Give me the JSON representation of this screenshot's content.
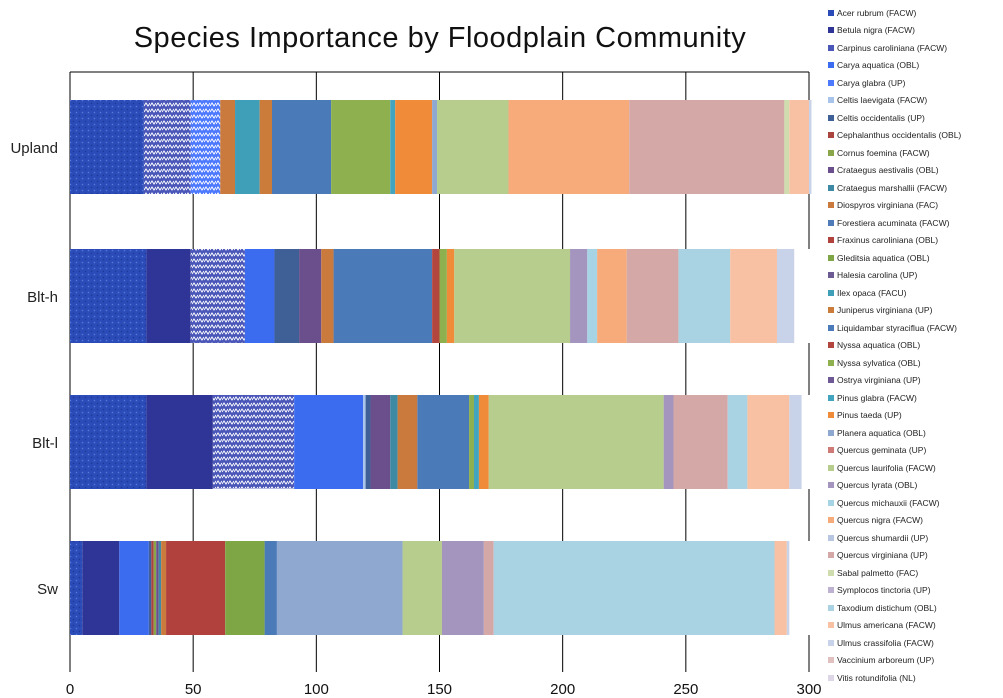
{
  "chart_data": {
    "type": "bar",
    "orientation": "horizontal",
    "stacked": true,
    "title": "Species Importance by Floodplain Community",
    "xlim": [
      0,
      300
    ],
    "xticks": [
      "0",
      "50",
      "100",
      "150",
      "200",
      "250",
      "300"
    ],
    "grid": "vertical",
    "legend_position": "right",
    "categories": [
      "Upland",
      "Blt-h",
      "Blt-l",
      "Sw"
    ],
    "series": [
      {
        "name": "Acer rubrum (FACW)",
        "color": "#2b4cb8",
        "pattern": "dots",
        "values": [
          30,
          31,
          31,
          5
        ]
      },
      {
        "name": "Betula nigra (FACW)",
        "color": "#2f3596",
        "values": [
          0,
          18,
          27,
          15
        ]
      },
      {
        "name": "Carpinus caroliniana (FACW)",
        "color": "#4a57b8",
        "pattern": "zigzag",
        "values": [
          19,
          22,
          33,
          0
        ]
      },
      {
        "name": "Carya aquatica (OBL)",
        "color": "#3b6cf0",
        "values": [
          0,
          12,
          28,
          12
        ]
      },
      {
        "name": "Carya glabra (UP)",
        "color": "#4d79ff",
        "pattern": "zigzag",
        "values": [
          12,
          0,
          0,
          0
        ]
      },
      {
        "name": "Celtis laevigata (FACW)",
        "color": "#a9c4ea",
        "values": [
          0,
          0,
          1,
          0
        ]
      },
      {
        "name": "Celtis occidentalis (UP)",
        "color": "#3f6096",
        "values": [
          0,
          10,
          2,
          1
        ]
      },
      {
        "name": "Cephalanthus occidentalis (OBL)",
        "color": "#a9443f",
        "values": [
          0,
          0,
          0,
          1
        ]
      },
      {
        "name": "Cornus foemina (FACW)",
        "color": "#8aa64b",
        "values": [
          0,
          0,
          0,
          1
        ]
      },
      {
        "name": "Crataegus aestivalis (OBL)",
        "color": "#6a4f8c",
        "values": [
          0,
          9,
          8,
          1
        ]
      },
      {
        "name": "Crataegus marshallii (FACW)",
        "color": "#3e8aa4",
        "values": [
          0,
          0,
          3,
          1
        ]
      },
      {
        "name": "Diospyros virginiana (FAC)",
        "color": "#c97a3c",
        "values": [
          6,
          5,
          8,
          2
        ]
      },
      {
        "name": "Forestiera acuminata (FACW)",
        "color": "#4f7bb8",
        "values": [
          0,
          0,
          0,
          0
        ]
      },
      {
        "name": "Fraxinus caroliniana (OBL)",
        "color": "#b0413d",
        "values": [
          0,
          0,
          0,
          24
        ]
      },
      {
        "name": "Gleditsia aquatica (OBL)",
        "color": "#7fa645",
        "values": [
          0,
          0,
          0,
          16
        ]
      },
      {
        "name": "Halesia carolina (UP)",
        "color": "#6c5a92",
        "values": [
          0,
          0,
          0,
          0
        ]
      },
      {
        "name": "Ilex opaca (FACU)",
        "color": "#3f9fb8",
        "values": [
          10,
          0,
          0,
          0
        ]
      },
      {
        "name": "Juniperus virginiana (UP)",
        "color": "#cc7c3a",
        "values": [
          5,
          0,
          0,
          0
        ]
      },
      {
        "name": "Liquidambar styraciflua (FACW)",
        "color": "#4a7ab8",
        "values": [
          24,
          40,
          21,
          5
        ]
      },
      {
        "name": "Nyssa aquatica (OBL)",
        "color": "#b3453f",
        "values": [
          0,
          3,
          0,
          0
        ]
      },
      {
        "name": "Nyssa sylvatica (OBL)",
        "color": "#8fb04f",
        "values": [
          24,
          3,
          2,
          0
        ]
      },
      {
        "name": "Ostrya virginiana (UP)",
        "color": "#6e5896",
        "values": [
          0,
          0,
          0,
          0
        ]
      },
      {
        "name": "Pinus glabra (FACW)",
        "color": "#43a4bf",
        "values": [
          2,
          0,
          2,
          0
        ]
      },
      {
        "name": "Pinus taeda (UP)",
        "color": "#f08b3a",
        "values": [
          15,
          3,
          4,
          0
        ]
      },
      {
        "name": "Planera aquatica (OBL)",
        "color": "#8ea8d0",
        "values": [
          2,
          0,
          0,
          51
        ]
      },
      {
        "name": "Quercus geminata (UP)",
        "color": "#d07a78",
        "values": [
          0,
          0,
          0,
          0
        ]
      },
      {
        "name": "Quercus laurifolia (FACW)",
        "color": "#b6cd8e",
        "values": [
          29,
          47,
          71,
          16
        ]
      },
      {
        "name": "Quercus lyrata (OBL)",
        "color": "#a395bd",
        "values": [
          0,
          7,
          4,
          17
        ]
      },
      {
        "name": "Quercus michauxii (FACW)",
        "color": "#a7d4e4",
        "values": [
          0,
          4,
          0,
          0
        ]
      },
      {
        "name": "Quercus nigra (FACW)",
        "color": "#f7aa7a",
        "values": [
          49,
          12,
          0,
          0
        ]
      },
      {
        "name": "Quercus shumardii (UP)",
        "color": "#b9c6e2",
        "values": [
          0,
          0,
          0,
          0
        ]
      },
      {
        "name": "Quercus virginiana (UP)",
        "color": "#d4a8a6",
        "values": [
          63,
          21,
          22,
          4
        ]
      },
      {
        "name": "Sabal palmetto (FAC)",
        "color": "#cfdcae",
        "values": [
          2,
          0,
          0,
          0
        ]
      },
      {
        "name": "Symplocos tinctoria (UP)",
        "color": "#bdb2d2",
        "values": [
          0,
          0,
          0,
          0
        ]
      },
      {
        "name": "Taxodium distichum (OBL)",
        "color": "#a9d3e3",
        "values": [
          0,
          21,
          8,
          114
        ]
      },
      {
        "name": "Ulmus americana (FACW)",
        "color": "#f8c1a3",
        "values": [
          8,
          19,
          17,
          5
        ]
      },
      {
        "name": "Ulmus crassifolia (FACW)",
        "color": "#c8d2e8",
        "values": [
          1,
          7,
          5,
          1
        ]
      },
      {
        "name": "Vaccinium arboreum (UP)",
        "color": "#e0c1c0",
        "values": [
          0,
          0,
          0,
          0
        ]
      },
      {
        "name": "Vitis rotundifolia (NL)",
        "color": "#dcd6e6",
        "values": [
          0,
          0,
          0,
          0
        ]
      }
    ]
  }
}
